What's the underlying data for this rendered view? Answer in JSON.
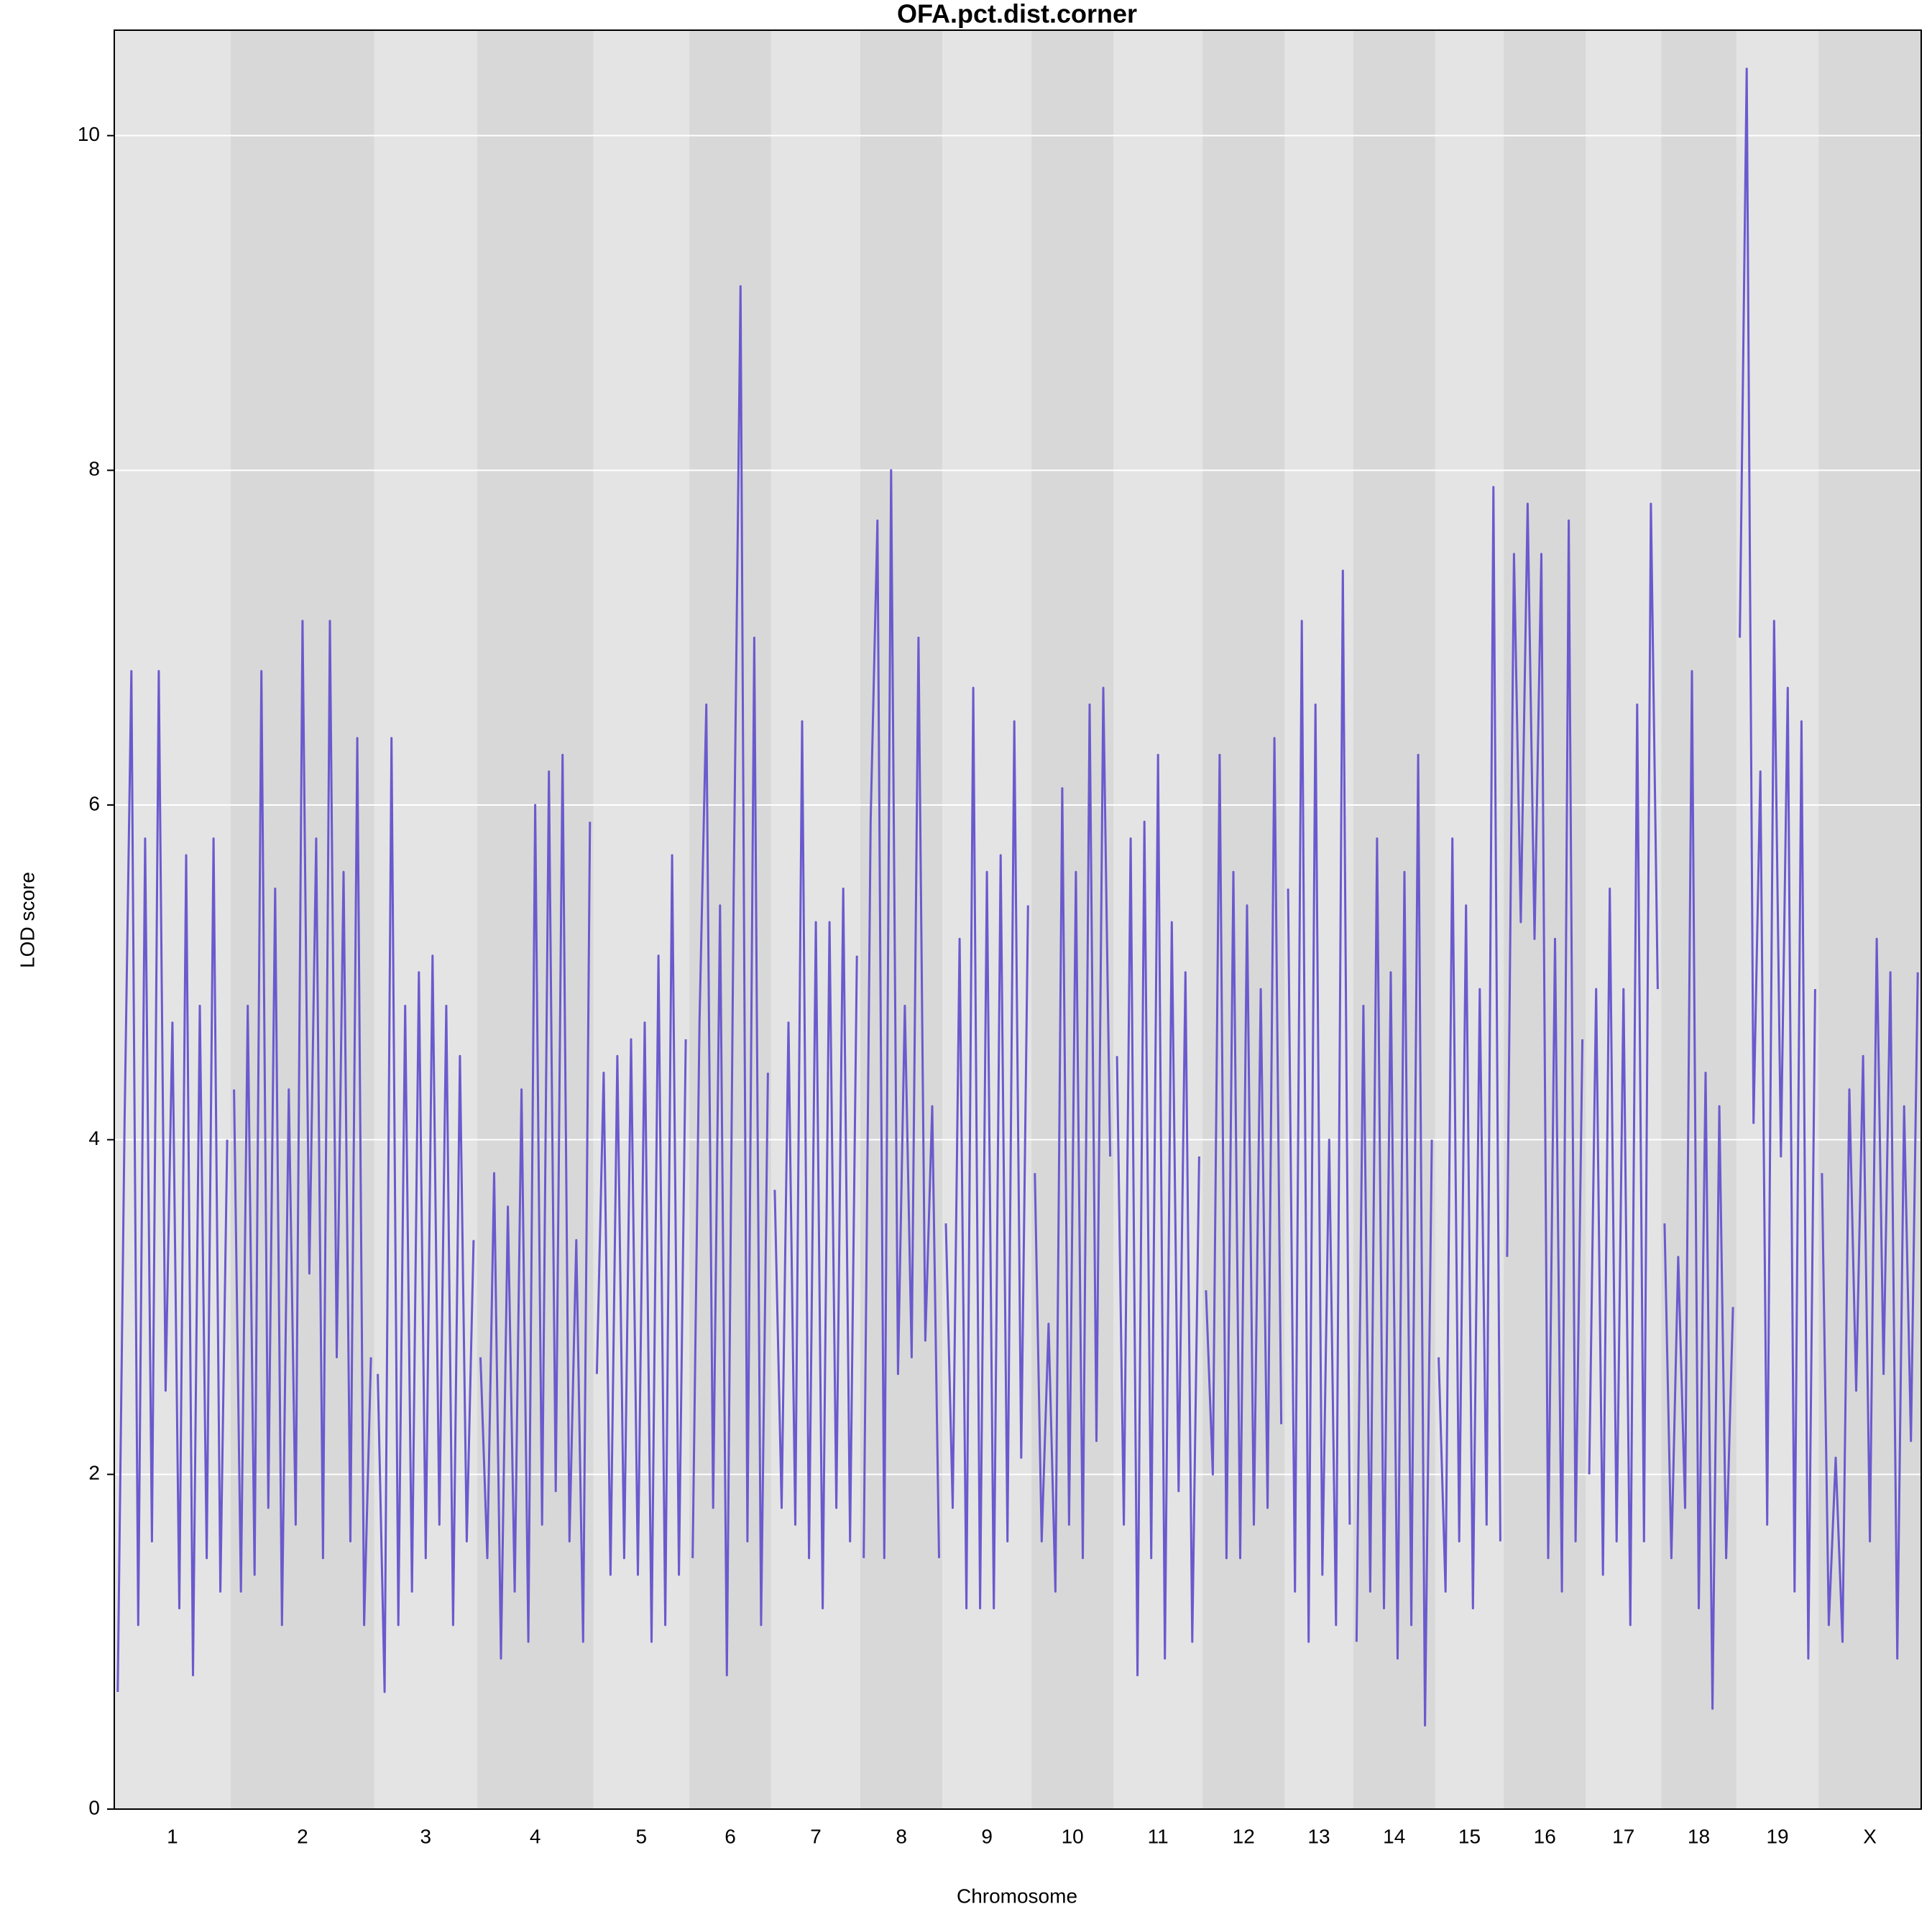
{
  "chart_data": {
    "type": "line",
    "title": "OFA.pct.dist.corner",
    "x_label": "Chromosome",
    "y_label": "LOD score",
    "color": "#6a5acd",
    "band_colors": [
      "#e4e4e4",
      "#d8d8d8"
    ],
    "grid": true,
    "ylim": [
      0,
      10.63
    ],
    "yticks": [
      0,
      2,
      4,
      6,
      8,
      10
    ],
    "chromosomes": [
      {
        "name": "1",
        "values": [
          0.7,
          4.1,
          6.8,
          1.1,
          5.8,
          1.6,
          6.8,
          2.5,
          4.7,
          1.2,
          5.7,
          0.8,
          4.8,
          1.5,
          5.8,
          1.3,
          4.0
        ]
      },
      {
        "name": "2",
        "values": [
          4.3,
          1.3,
          4.8,
          1.4,
          6.8,
          1.8,
          5.5,
          1.1,
          4.3,
          1.7,
          7.1,
          3.2,
          5.8,
          1.5,
          7.1,
          2.7,
          5.6,
          1.6,
          6.4,
          1.1,
          2.7
        ]
      },
      {
        "name": "3",
        "values": [
          2.6,
          0.7,
          6.4,
          1.1,
          4.8,
          1.3,
          5.0,
          1.5,
          5.1,
          1.7,
          4.8,
          1.1,
          4.5,
          1.6,
          3.4
        ]
      },
      {
        "name": "4",
        "values": [
          2.7,
          1.5,
          3.8,
          0.9,
          3.6,
          1.3,
          4.3,
          1.0,
          6.0,
          1.7,
          6.2,
          1.9,
          6.3,
          1.6,
          3.4,
          1.0,
          5.9
        ]
      },
      {
        "name": "5",
        "values": [
          2.6,
          4.4,
          1.4,
          4.5,
          1.5,
          4.6,
          1.4,
          4.7,
          1.0,
          5.1,
          1.1,
          5.7,
          1.4,
          4.6
        ]
      },
      {
        "name": "6",
        "values": [
          1.5,
          4.7,
          6.6,
          1.8,
          5.4,
          0.8,
          5.5,
          9.1,
          1.6,
          7.0,
          1.1,
          4.4
        ]
      },
      {
        "name": "7",
        "values": [
          3.7,
          1.8,
          4.7,
          1.7,
          6.5,
          1.5,
          5.3,
          1.2,
          5.3,
          1.8,
          5.5,
          1.6,
          5.1
        ]
      },
      {
        "name": "8",
        "values": [
          1.5,
          5.9,
          7.7,
          1.5,
          8.0,
          2.6,
          4.8,
          2.7,
          7.0,
          2.8,
          4.2,
          1.5
        ]
      },
      {
        "name": "9",
        "values": [
          3.5,
          1.8,
          5.2,
          1.2,
          6.7,
          1.2,
          5.6,
          1.2,
          5.7,
          1.6,
          6.5,
          2.1,
          5.4
        ]
      },
      {
        "name": "10",
        "values": [
          3.8,
          1.6,
          2.9,
          1.3,
          6.1,
          1.7,
          5.6,
          1.5,
          6.6,
          2.2,
          6.7,
          3.9
        ]
      },
      {
        "name": "11",
        "values": [
          4.5,
          1.7,
          5.8,
          0.8,
          5.9,
          1.5,
          6.3,
          0.9,
          5.3,
          1.9,
          5.0,
          1.0,
          3.9
        ]
      },
      {
        "name": "12",
        "values": [
          3.1,
          2.0,
          6.3,
          1.5,
          5.6,
          1.5,
          5.4,
          1.7,
          4.9,
          1.8,
          6.4,
          2.3
        ]
      },
      {
        "name": "13",
        "values": [
          5.5,
          1.3,
          7.1,
          1.0,
          6.6,
          1.4,
          4.0,
          1.1,
          7.4,
          1.7
        ]
      },
      {
        "name": "14",
        "values": [
          1.0,
          4.8,
          1.3,
          5.8,
          1.2,
          5.0,
          0.9,
          5.6,
          1.1,
          6.3,
          0.5,
          4.0
        ]
      },
      {
        "name": "15",
        "values": [
          2.7,
          1.3,
          5.8,
          1.6,
          5.4,
          1.2,
          4.9,
          1.7,
          7.9,
          1.6
        ]
      },
      {
        "name": "16",
        "values": [
          3.3,
          7.5,
          5.3,
          7.8,
          5.2,
          7.5,
          1.5,
          5.2,
          1.3,
          7.7,
          1.6,
          4.6
        ]
      },
      {
        "name": "17",
        "values": [
          2.0,
          4.9,
          1.4,
          5.5,
          1.6,
          4.9,
          1.1,
          6.6,
          1.6,
          7.8,
          4.9
        ]
      },
      {
        "name": "18",
        "values": [
          3.5,
          1.5,
          3.3,
          1.8,
          6.8,
          1.2,
          4.4,
          0.6,
          4.2,
          1.5,
          3.0
        ]
      },
      {
        "name": "19",
        "values": [
          7.0,
          10.4,
          4.1,
          6.2,
          1.7,
          7.1,
          3.9,
          6.7,
          1.3,
          6.5,
          0.9,
          4.9
        ]
      },
      {
        "name": "X",
        "values": [
          3.8,
          1.1,
          2.1,
          1.0,
          4.3,
          2.5,
          4.5,
          1.6,
          5.2,
          2.6,
          5.0,
          0.9,
          4.2,
          2.2,
          5.0
        ]
      }
    ]
  }
}
